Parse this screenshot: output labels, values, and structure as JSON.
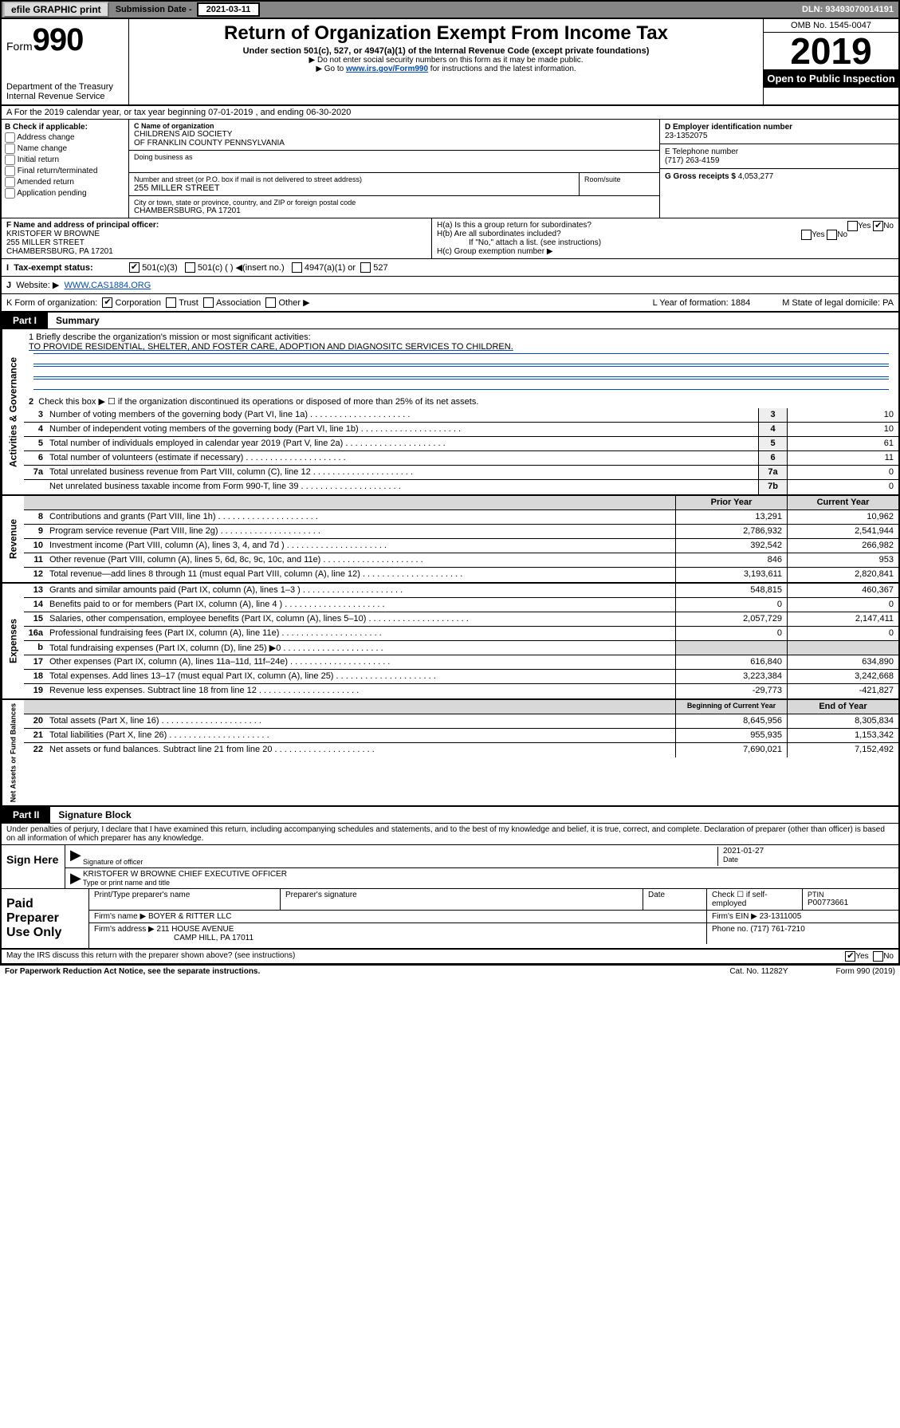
{
  "topbar": {
    "efile": "efile GRAPHIC print",
    "submission_label": "Submission Date - ",
    "submission_date": "2021-03-11",
    "dln": "DLN: 93493070014191"
  },
  "header": {
    "form_prefix": "Form",
    "form_number": "990",
    "dept": "Department of the Treasury",
    "irs": "Internal Revenue Service",
    "title": "Return of Organization Exempt From Income Tax",
    "subtitle": "Under section 501(c), 527, or 4947(a)(1) of the Internal Revenue Code (except private foundations)",
    "note1": "▶ Do not enter social security numbers on this form as it may be made public.",
    "note2_pre": "▶ Go to ",
    "note2_link": "www.irs.gov/Form990",
    "note2_post": " for instructions and the latest information.",
    "omb": "OMB No. 1545-0047",
    "year": "2019",
    "open": "Open to Public Inspection"
  },
  "A": "A For the 2019 calendar year, or tax year beginning 07-01-2019    , and ending 06-30-2020",
  "B": {
    "header": "B Check if applicable:",
    "items": [
      "Address change",
      "Name change",
      "Initial return",
      "Final return/terminated",
      "Amended return",
      "Application pending"
    ]
  },
  "C": {
    "name_label": "C Name of organization",
    "name1": "CHILDRENS AID SOCIETY",
    "name2": "OF FRANKLIN COUNTY PENNSYLVANIA",
    "dba_label": "Doing business as",
    "street_label": "Number and street (or P.O. box if mail is not delivered to street address)",
    "room_label": "Room/suite",
    "street": "255 MILLER STREET",
    "city_label": "City or town, state or province, country, and ZIP or foreign postal code",
    "city": "CHAMBERSBURG, PA  17201"
  },
  "D": {
    "label": "D Employer identification number",
    "value": "23-1352075"
  },
  "E": {
    "label": "E Telephone number",
    "value": "(717) 263-4159"
  },
  "G": {
    "label": "G Gross receipts $",
    "value": "4,053,277"
  },
  "F": {
    "label": "F  Name and address of principal officer:",
    "name": "KRISTOFER W BROWNE",
    "street": "255 MILLER STREET",
    "city": "CHAMBERSBURG, PA  17201"
  },
  "H": {
    "a": "H(a)  Is this a group return for subordinates?",
    "b": "H(b)  Are all subordinates included?",
    "b_note": "If \"No,\" attach a list. (see instructions)",
    "c": "H(c)  Group exemption number ▶",
    "yes": "Yes",
    "no": "No"
  },
  "I": {
    "label": "Tax-exempt status:",
    "opts": [
      "501(c)(3)",
      "501(c) (  ) ◀(insert no.)",
      "4947(a)(1) or",
      "527"
    ]
  },
  "J": {
    "label": "Website: ▶",
    "value": "WWW.CAS1884.ORG"
  },
  "K": {
    "label": "K Form of organization:",
    "opts": [
      "Corporation",
      "Trust",
      "Association",
      "Other ▶"
    ],
    "L": "L Year of formation: 1884",
    "M": "M State of legal domicile: PA"
  },
  "partI": {
    "tag": "Part I",
    "title": "Summary"
  },
  "summary": {
    "l1_label": "1  Briefly describe the organization's mission or most significant activities:",
    "l1_text": "TO PROVIDE RESIDENTIAL, SHELTER, AND FOSTER CARE, ADOPTION AND DIAGNOSITC SERVICES TO CHILDREN.",
    "l2": "Check this box ▶ ☐  if the organization discontinued its operations or disposed of more than 25% of its net assets.",
    "rows_gov": [
      {
        "n": "3",
        "d": "Number of voting members of the governing body (Part VI, line 1a)",
        "box": "3",
        "v": "10"
      },
      {
        "n": "4",
        "d": "Number of independent voting members of the governing body (Part VI, line 1b)",
        "box": "4",
        "v": "10"
      },
      {
        "n": "5",
        "d": "Total number of individuals employed in calendar year 2019 (Part V, line 2a)",
        "box": "5",
        "v": "61"
      },
      {
        "n": "6",
        "d": "Total number of volunteers (estimate if necessary)",
        "box": "6",
        "v": "11"
      },
      {
        "n": "7a",
        "d": "Total unrelated business revenue from Part VIII, column (C), line 12",
        "box": "7a",
        "v": "0"
      },
      {
        "n": "",
        "d": "Net unrelated business taxable income from Form 990-T, line 39",
        "box": "7b",
        "v": "0"
      }
    ],
    "col_prior": "Prior Year",
    "col_current": "Current Year",
    "rev": [
      {
        "n": "8",
        "d": "Contributions and grants (Part VIII, line 1h)",
        "p": "13,291",
        "c": "10,962"
      },
      {
        "n": "9",
        "d": "Program service revenue (Part VIII, line 2g)",
        "p": "2,786,932",
        "c": "2,541,944"
      },
      {
        "n": "10",
        "d": "Investment income (Part VIII, column (A), lines 3, 4, and 7d )",
        "p": "392,542",
        "c": "266,982"
      },
      {
        "n": "11",
        "d": "Other revenue (Part VIII, column (A), lines 5, 6d, 8c, 9c, 10c, and 11e)",
        "p": "846",
        "c": "953"
      },
      {
        "n": "12",
        "d": "Total revenue—add lines 8 through 11 (must equal Part VIII, column (A), line 12)",
        "p": "3,193,611",
        "c": "2,820,841"
      }
    ],
    "exp": [
      {
        "n": "13",
        "d": "Grants and similar amounts paid (Part IX, column (A), lines 1–3 )",
        "p": "548,815",
        "c": "460,367"
      },
      {
        "n": "14",
        "d": "Benefits paid to or for members (Part IX, column (A), line 4 )",
        "p": "0",
        "c": "0"
      },
      {
        "n": "15",
        "d": "Salaries, other compensation, employee benefits (Part IX, column (A), lines 5–10)",
        "p": "2,057,729",
        "c": "2,147,411"
      },
      {
        "n": "16a",
        "d": "Professional fundraising fees (Part IX, column (A), line 11e)",
        "p": "0",
        "c": "0"
      },
      {
        "n": "b",
        "d": "Total fundraising expenses (Part IX, column (D), line 25) ▶0",
        "p": "",
        "c": "",
        "grey": true
      },
      {
        "n": "17",
        "d": "Other expenses (Part IX, column (A), lines 11a–11d, 11f–24e)",
        "p": "616,840",
        "c": "634,890"
      },
      {
        "n": "18",
        "d": "Total expenses. Add lines 13–17 (must equal Part IX, column (A), line 25)",
        "p": "3,223,384",
        "c": "3,242,668"
      },
      {
        "n": "19",
        "d": "Revenue less expenses. Subtract line 18 from line 12",
        "p": "-29,773",
        "c": "-421,827"
      }
    ],
    "col_begin": "Beginning of Current Year",
    "col_end": "End of Year",
    "net": [
      {
        "n": "20",
        "d": "Total assets (Part X, line 16)",
        "p": "8,645,956",
        "c": "8,305,834"
      },
      {
        "n": "21",
        "d": "Total liabilities (Part X, line 26)",
        "p": "955,935",
        "c": "1,153,342"
      },
      {
        "n": "22",
        "d": "Net assets or fund balances. Subtract line 21 from line 20",
        "p": "7,690,021",
        "c": "7,152,492"
      }
    ]
  },
  "side_labels": {
    "gov": "Activities & Governance",
    "rev": "Revenue",
    "exp": "Expenses",
    "net": "Net Assets or Fund Balances"
  },
  "partII": {
    "tag": "Part II",
    "title": "Signature Block"
  },
  "sig": {
    "perjury": "Under penalties of perjury, I declare that I have examined this return, including accompanying schedules and statements, and to the best of my knowledge and belief, it is true, correct, and complete. Declaration of preparer (other than officer) is based on all information of which preparer has any knowledge.",
    "sign_here": "Sign Here",
    "date": "2021-01-27",
    "sig_officer": "Signature of officer",
    "date_label": "Date",
    "officer_name": "KRISTOFER W BROWNE  CHIEF EXECUTIVE OFFICER",
    "type_name": "Type or print name and title"
  },
  "prep": {
    "label": "Paid Preparer Use Only",
    "h1": "Print/Type preparer's name",
    "h2": "Preparer's signature",
    "h3": "Date",
    "h4": "Check ☐ if self-employed",
    "h5": "PTIN",
    "ptin": "P00773661",
    "firm_name_label": "Firm's name      ▶",
    "firm_name": "BOYER & RITTER LLC",
    "firm_ein_label": "Firm's EIN ▶",
    "firm_ein": "23-1311005",
    "firm_addr_label": "Firm's address ▶",
    "firm_addr1": "211 HOUSE AVENUE",
    "firm_addr2": "CAMP HILL, PA  17011",
    "phone_label": "Phone no.",
    "phone": "(717) 761-7210"
  },
  "footer": {
    "discuss": "May the IRS discuss this return with the preparer shown above? (see instructions)",
    "yes": "Yes",
    "no": "No",
    "paperwork": "For Paperwork Reduction Act Notice, see the separate instructions.",
    "cat": "Cat. No. 11282Y",
    "form": "Form 990 (2019)"
  }
}
